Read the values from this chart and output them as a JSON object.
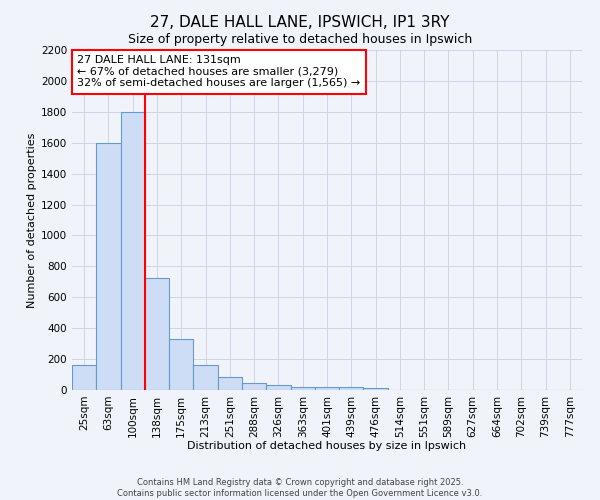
{
  "title": "27, DALE HALL LANE, IPSWICH, IP1 3RY",
  "subtitle": "Size of property relative to detached houses in Ipswich",
  "xlabel": "Distribution of detached houses by size in Ipswich",
  "ylabel": "Number of detached properties",
  "bar_labels": [
    "25sqm",
    "63sqm",
    "100sqm",
    "138sqm",
    "175sqm",
    "213sqm",
    "251sqm",
    "288sqm",
    "326sqm",
    "363sqm",
    "401sqm",
    "439sqm",
    "476sqm",
    "514sqm",
    "551sqm",
    "589sqm",
    "627sqm",
    "664sqm",
    "702sqm",
    "739sqm",
    "777sqm"
  ],
  "bar_values": [
    160,
    1600,
    1800,
    725,
    330,
    160,
    85,
    45,
    30,
    20,
    20,
    20,
    15,
    0,
    0,
    0,
    0,
    0,
    0,
    0,
    0
  ],
  "bar_color": "#ccddf5",
  "bar_edge_color": "#6699cc",
  "vline_x": 2.5,
  "vline_color": "red",
  "ylim": [
    0,
    2200
  ],
  "yticks": [
    0,
    200,
    400,
    600,
    800,
    1000,
    1200,
    1400,
    1600,
    1800,
    2000,
    2200
  ],
  "annotation_title": "27 DALE HALL LANE: 131sqm",
  "annotation_line1": "← 67% of detached houses are smaller (3,279)",
  "annotation_line2": "32% of semi-detached houses are larger (1,565) →",
  "annotation_box_color": "#ffffff",
  "annotation_box_edge": "red",
  "bg_color": "#f0f4fa",
  "grid_color": "#c8d0e0",
  "footer1": "Contains HM Land Registry data © Crown copyright and database right 2025.",
  "footer2": "Contains public sector information licensed under the Open Government Licence v3.0.",
  "title_fontsize": 11,
  "subtitle_fontsize": 9,
  "axis_label_fontsize": 8,
  "tick_fontsize": 7.5,
  "annotation_fontsize": 8,
  "footer_fontsize": 6
}
